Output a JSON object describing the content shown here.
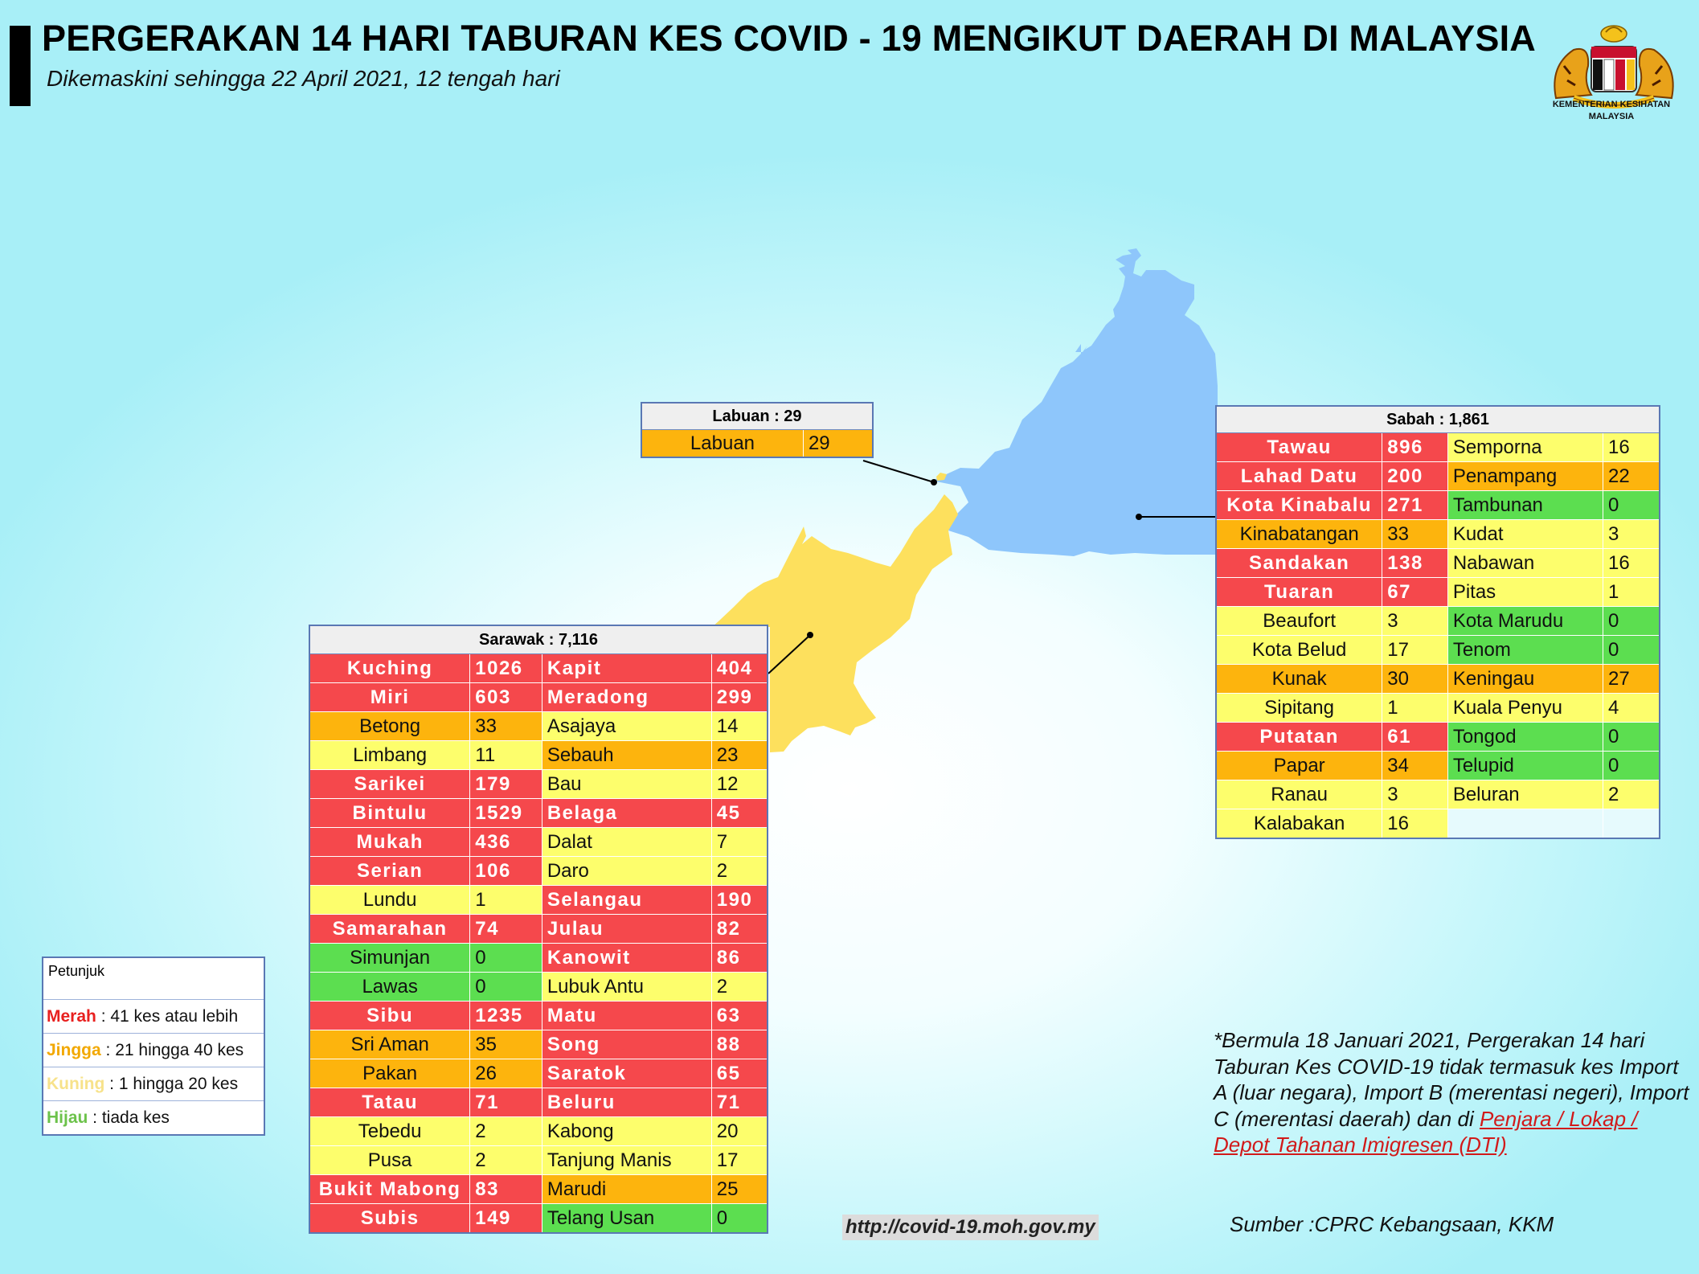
{
  "header": {
    "title": "PERGERAKAN 14 HARI TABURAN KES COVID - 19 MENGIKUT DAERAH DI MALAYSIA",
    "subtitle": "Dikemaskini sehingga 22 April 2021, 12 tengah hari",
    "logo_caption_line1": "KEMENTERIAN KESIHATAN",
    "logo_caption_line2": "MALAYSIA"
  },
  "colors": {
    "merah": "#f5484c",
    "jingga": "#fdb40d",
    "kuning": "#fdfe6c",
    "hijau": "#5cde50",
    "sabah_map": "#8ec6fb",
    "sarawak_map": "#fde05d"
  },
  "map": {
    "regions": [
      {
        "name": "Sabah",
        "color": "#8ec6fb"
      },
      {
        "name": "Sarawak",
        "color": "#fde05d"
      },
      {
        "name": "Labuan",
        "color": "#fde05d"
      }
    ]
  },
  "labuan": {
    "header": "Labuan : 29",
    "rows": [
      {
        "name": "Labuan",
        "value": "29",
        "level": "o"
      }
    ]
  },
  "sabah": {
    "header": "Sabah : 1,861",
    "rows": [
      {
        "n1": "Tawau",
        "v1": "896",
        "l1": "r",
        "n2": "Semporna",
        "v2": "16",
        "l2": "y"
      },
      {
        "n1": "Lahad Datu",
        "v1": "200",
        "l1": "r",
        "n2": "Penampang",
        "v2": "22",
        "l2": "o"
      },
      {
        "n1": "Kota Kinabalu",
        "v1": "271",
        "l1": "r",
        "n2": "Tambunan",
        "v2": "0",
        "l2": "g"
      },
      {
        "n1": "Kinabatangan",
        "v1": "33",
        "l1": "o",
        "n2": "Kudat",
        "v2": "3",
        "l2": "y"
      },
      {
        "n1": "Sandakan",
        "v1": "138",
        "l1": "r",
        "n2": "Nabawan",
        "v2": "16",
        "l2": "y"
      },
      {
        "n1": "Tuaran",
        "v1": "67",
        "l1": "r",
        "n2": "Pitas",
        "v2": "1",
        "l2": "y"
      },
      {
        "n1": "Beaufort",
        "v1": "3",
        "l1": "y",
        "n2": "Kota Marudu",
        "v2": "0",
        "l2": "g"
      },
      {
        "n1": "Kota Belud",
        "v1": "17",
        "l1": "y",
        "n2": "Tenom",
        "v2": "0",
        "l2": "g"
      },
      {
        "n1": "Kunak",
        "v1": "30",
        "l1": "o",
        "n2": "Keningau",
        "v2": "27",
        "l2": "o"
      },
      {
        "n1": "Sipitang",
        "v1": "1",
        "l1": "y",
        "n2": "Kuala Penyu",
        "v2": "4",
        "l2": "y"
      },
      {
        "n1": "Putatan",
        "v1": "61",
        "l1": "r",
        "n2": "Tongod",
        "v2": "0",
        "l2": "g"
      },
      {
        "n1": "Papar",
        "v1": "34",
        "l1": "o",
        "n2": "Telupid",
        "v2": "0",
        "l2": "g"
      },
      {
        "n1": "Ranau",
        "v1": "3",
        "l1": "y",
        "n2": "Beluran",
        "v2": "2",
        "l2": "y"
      },
      {
        "n1": "Kalabakan",
        "v1": "16",
        "l1": "y",
        "n2": "",
        "v2": "",
        "l2": "e"
      }
    ]
  },
  "sarawak": {
    "header": "Sarawak : 7,116",
    "rows": [
      {
        "n1": "Kuching",
        "v1": "1026",
        "l1": "r",
        "n2": "Kapit",
        "v2": "404",
        "l2": "r"
      },
      {
        "n1": "Miri",
        "v1": "603",
        "l1": "r",
        "n2": "Meradong",
        "v2": "299",
        "l2": "r"
      },
      {
        "n1": "Betong",
        "v1": "33",
        "l1": "o",
        "n2": "Asajaya",
        "v2": "14",
        "l2": "y"
      },
      {
        "n1": "Limbang",
        "v1": "11",
        "l1": "y",
        "n2": "Sebauh",
        "v2": "23",
        "l2": "o"
      },
      {
        "n1": "Sarikei",
        "v1": "179",
        "l1": "r",
        "n2": "Bau",
        "v2": "12",
        "l2": "y"
      },
      {
        "n1": "Bintulu",
        "v1": "1529",
        "l1": "r",
        "n2": "Belaga",
        "v2": "45",
        "l2": "r"
      },
      {
        "n1": "Mukah",
        "v1": "436",
        "l1": "r",
        "n2": "Dalat",
        "v2": "7",
        "l2": "y"
      },
      {
        "n1": "Serian",
        "v1": "106",
        "l1": "r",
        "n2": "Daro",
        "v2": "2",
        "l2": "y"
      },
      {
        "n1": "Lundu",
        "v1": "1",
        "l1": "y",
        "n2": "Selangau",
        "v2": "190",
        "l2": "r"
      },
      {
        "n1": "Samarahan",
        "v1": "74",
        "l1": "r",
        "n2": "Julau",
        "v2": "82",
        "l2": "r"
      },
      {
        "n1": "Simunjan",
        "v1": "0",
        "l1": "g",
        "n2": "Kanowit",
        "v2": "86",
        "l2": "r"
      },
      {
        "n1": "Lawas",
        "v1": "0",
        "l1": "g",
        "n2": "Lubuk Antu",
        "v2": "2",
        "l2": "y"
      },
      {
        "n1": "Sibu",
        "v1": "1235",
        "l1": "r",
        "n2": "Matu",
        "v2": "63",
        "l2": "r"
      },
      {
        "n1": "Sri Aman",
        "v1": "35",
        "l1": "o",
        "n2": "Song",
        "v2": "88",
        "l2": "r"
      },
      {
        "n1": "Pakan",
        "v1": "26",
        "l1": "o",
        "n2": "Saratok",
        "v2": "65",
        "l2": "r"
      },
      {
        "n1": "Tatau",
        "v1": "71",
        "l1": "r",
        "n2": "Beluru",
        "v2": "71",
        "l2": "r"
      },
      {
        "n1": "Tebedu",
        "v1": "2",
        "l1": "y",
        "n2": "Kabong",
        "v2": "20",
        "l2": "y"
      },
      {
        "n1": "Pusa",
        "v1": "2",
        "l1": "y",
        "n2": "Tanjung Manis",
        "v2": "17",
        "l2": "y"
      },
      {
        "n1": "Bukit Mabong",
        "v1": "83",
        "l1": "r",
        "n2": "Marudi",
        "v2": "25",
        "l2": "o"
      },
      {
        "n1": "Subis",
        "v1": "149",
        "l1": "r",
        "n2": "Telang Usan",
        "v2": "0",
        "l2": "g"
      }
    ]
  },
  "legend": {
    "title": "Petunjuk",
    "items": [
      {
        "key": "Merah",
        "desc": " : 41 kes atau lebih",
        "color": "#e8201f"
      },
      {
        "key": "Jingga",
        "desc": " : 21 hingga 40 kes",
        "color": "#f2a800"
      },
      {
        "key": "Kuning",
        "desc": " : 1 hingga 20 kes",
        "color": "#f7e28a"
      },
      {
        "key": "Hijau",
        "desc": " : tiada kes",
        "color": "#6cc24a"
      }
    ]
  },
  "note": {
    "text": "*Bermula 18 Januari 2021, Pergerakan 14 hari Taburan Kes COVID-19 tidak termasuk kes Import A (luar negara), Import B (merentasi negeri), Import C (merentasi daerah) dan di ",
    "link": "Penjara / Lokap / Depot Tahanan Imigresen (DTI)"
  },
  "source": "Sumber :CPRC Kebangsaan,  KKM",
  "url": "http://covid-19.moh.gov.my"
}
